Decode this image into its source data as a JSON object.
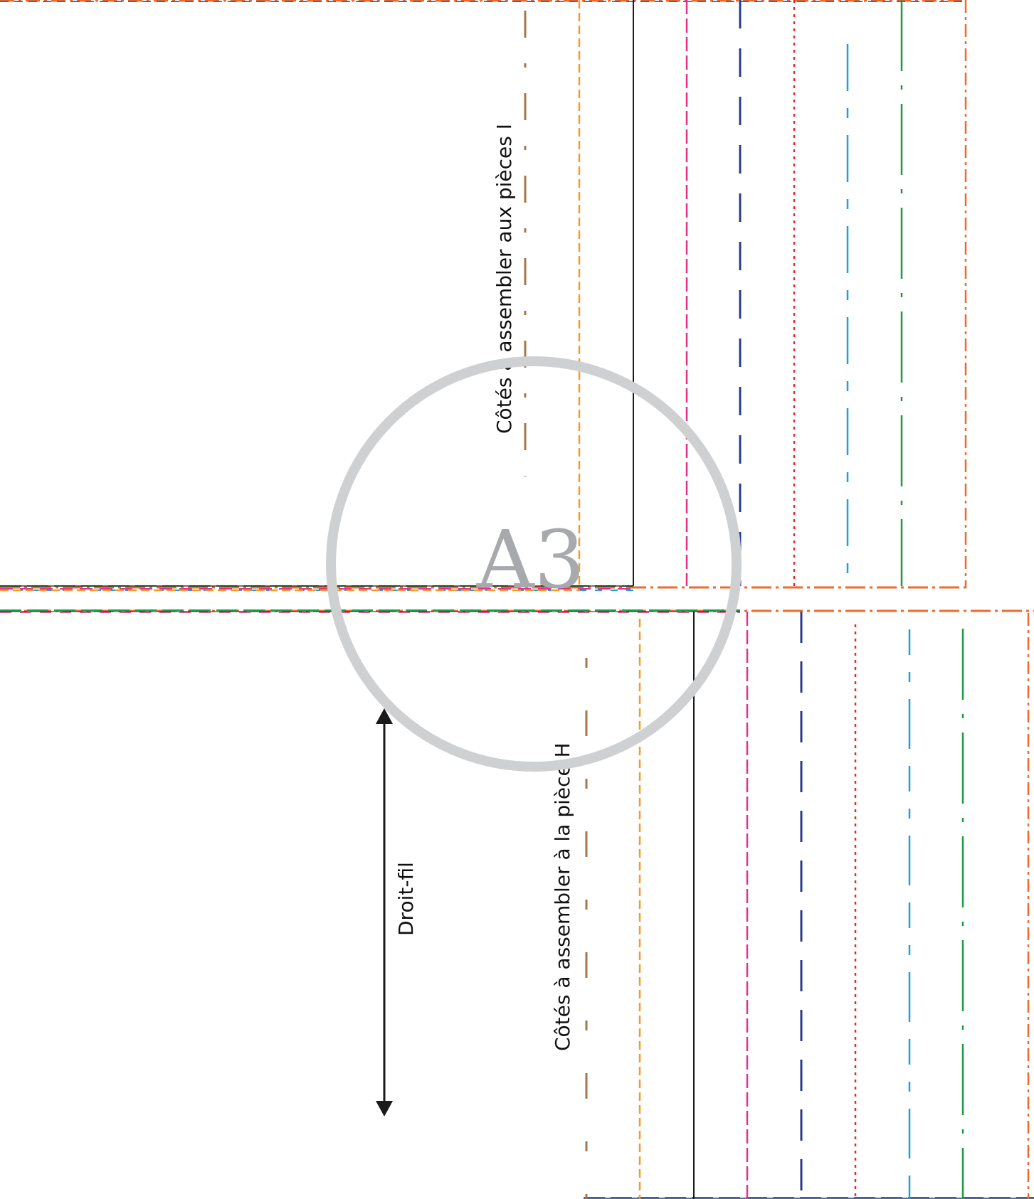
{
  "page_mark": {
    "text": "A3",
    "color": "#a7a9ac"
  },
  "labels": {
    "top_assembly": "Côtés à assembler aux pièces I",
    "bottom_assembly": "Côtés à assembler à la pièce H",
    "grainline": "Droit-fil"
  },
  "size_line_colors": {
    "brown": "#a6774a",
    "orange": "#f39c2c",
    "black": "#1a1a1a",
    "magenta": "#e6318a",
    "navy": "#283c8c",
    "red": "#e8272c",
    "cyan": "#1ea0dc",
    "green": "#1e9b46",
    "vermilion": "#ee6a2c"
  }
}
